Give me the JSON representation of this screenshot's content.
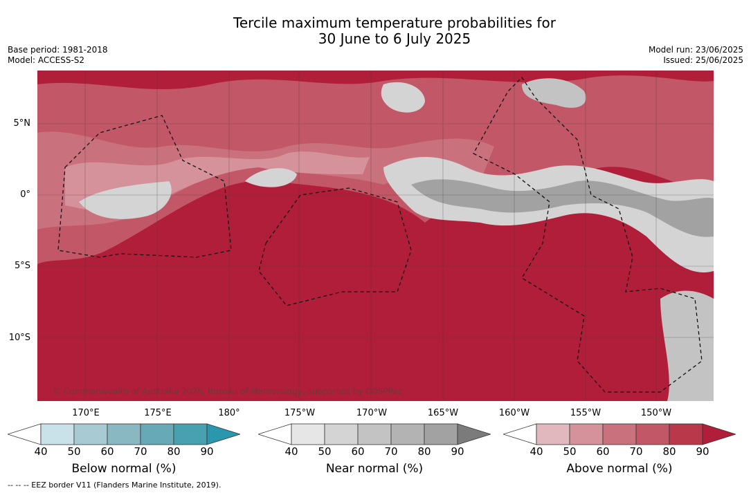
{
  "title": {
    "line1": "Tercile maximum temperature probabilities for",
    "line2": "30 June to 6 July 2025"
  },
  "meta": {
    "base_period": "Base period: 1981-2018",
    "model": "Model: ACCESS-S2",
    "model_run": "Model run: 23/06/2025",
    "issued": "Issued: 25/06/2025"
  },
  "map": {
    "lat_labels": [
      "5°N",
      "0°",
      "5°S",
      "10°S"
    ],
    "lon_labels": [
      "170°E",
      "175°E",
      "180°",
      "175°W",
      "170°W",
      "165°W",
      "160°W",
      "155°W",
      "150°W"
    ],
    "copyright": "© Commonwealth of Australia 2025, Bureau of Meteorology, supported by COSPPac"
  },
  "colorbars": [
    {
      "label": "Below normal (%)",
      "ticks": [
        "40",
        "50",
        "60",
        "70",
        "80",
        "90"
      ],
      "colors": [
        "#ffffff",
        "#c9e1e8",
        "#a8cbd3",
        "#89b8c3",
        "#68a9b8",
        "#47a1b1",
        "#2b97ad"
      ]
    },
    {
      "label": "Near normal (%)",
      "ticks": [
        "40",
        "50",
        "60",
        "70",
        "80",
        "90"
      ],
      "colors": [
        "#ffffff",
        "#e6e6e6",
        "#d4d4d4",
        "#c3c3c3",
        "#b3b3b3",
        "#a2a2a2",
        "#7b7b7b"
      ]
    },
    {
      "label": "Above normal (%)",
      "ticks": [
        "40",
        "50",
        "60",
        "70",
        "80",
        "90"
      ],
      "colors": [
        "#ffffff",
        "#e1b8be",
        "#d6929a",
        "#c9727d",
        "#c25867",
        "#b9394b",
        "#b01e39"
      ]
    }
  ],
  "footnote": "--  --  -- EEZ border V11 (Flanders Marine Institute, 2019)."
}
